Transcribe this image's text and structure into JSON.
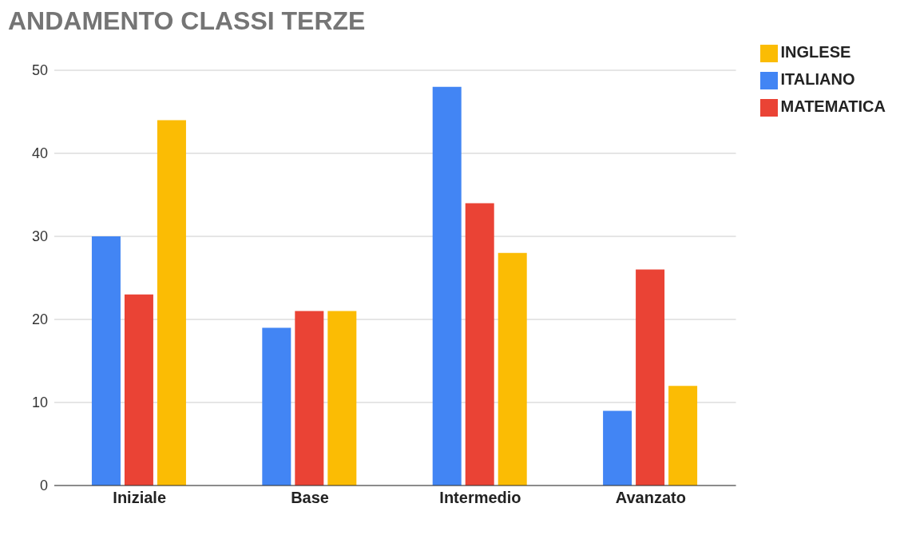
{
  "chart_data": {
    "type": "bar",
    "title": "ANDAMENTO CLASSI TERZE",
    "categories": [
      "Iniziale",
      "Base",
      "Intermedio",
      "Avanzato"
    ],
    "series": [
      {
        "name": "ITALIANO",
        "color": "#4285f4",
        "values": [
          30,
          19,
          48,
          9
        ]
      },
      {
        "name": "MATEMATICA",
        "color": "#ea4335",
        "values": [
          23,
          21,
          34,
          26
        ]
      },
      {
        "name": "INGLESE",
        "color": "#fbbc04",
        "values": [
          44,
          21,
          28,
          12
        ]
      }
    ],
    "ylim": [
      0,
      50
    ],
    "yticks": [
      0,
      10,
      20,
      30,
      40,
      50
    ],
    "grid": "y",
    "legend": "top right"
  }
}
